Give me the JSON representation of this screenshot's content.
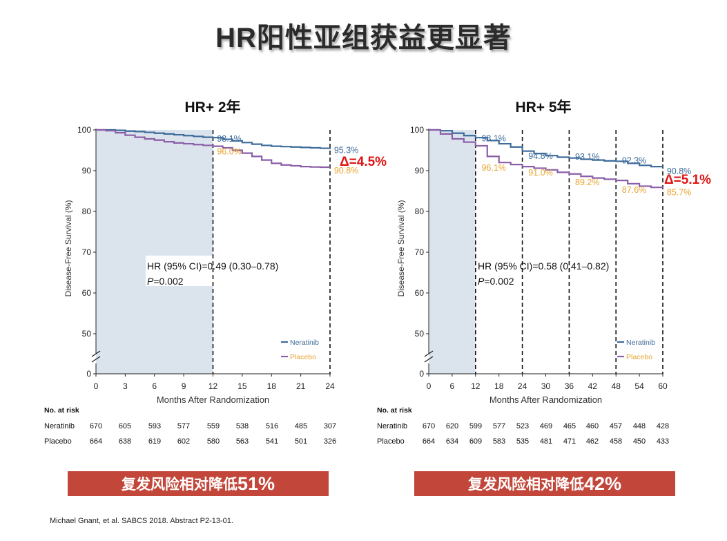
{
  "page": {
    "title": "HR阳性亚组获益更显著"
  },
  "colors": {
    "neratinib": "#3d6b9a",
    "placebo": "#8b5ea8",
    "annotation_placebo": "#e8a32e",
    "delta": "#e01515",
    "shade": "#dbe4ec",
    "banner": "#c2473a"
  },
  "footer": {
    "citation": "Michael Gnant, et al. SABCS 2018. Abstract P2-13-01."
  },
  "chart_data": [
    {
      "type": "line",
      "title": "HR+ 2年",
      "xlabel": "Months After Randomization",
      "ylabel": "Disease-Free Survival (%)",
      "xticks": [
        0,
        3,
        6,
        9,
        12,
        15,
        18,
        21,
        24
      ],
      "yticks": [
        0,
        50,
        60,
        70,
        80,
        90,
        100
      ],
      "xlim": [
        0,
        24
      ],
      "ylim": [
        40,
        100
      ],
      "axis_break": true,
      "shaded_region": [
        0,
        12
      ],
      "dashed_lines": [
        12,
        24
      ],
      "legend": {
        "position": "bottom-right",
        "entries": [
          "Neratinib",
          "Placebo"
        ]
      },
      "series": [
        {
          "name": "Neratinib",
          "x": [
            0,
            1,
            2,
            3,
            4,
            5,
            6,
            7,
            8,
            9,
            10,
            11,
            12,
            13,
            14,
            15,
            16,
            17,
            18,
            19,
            20,
            21,
            22,
            23,
            24
          ],
          "y": [
            100,
            100,
            99.9,
            99.7,
            99.6,
            99.4,
            99.2,
            99.0,
            98.8,
            98.6,
            98.4,
            98.2,
            98.1,
            97.7,
            97.3,
            96.9,
            96.5,
            96.2,
            96.0,
            95.9,
            95.8,
            95.7,
            95.6,
            95.5,
            95.3
          ]
        },
        {
          "name": "Placebo",
          "x": [
            0,
            1,
            2,
            3,
            4,
            5,
            6,
            7,
            8,
            9,
            10,
            11,
            12,
            13,
            14,
            15,
            16,
            17,
            18,
            19,
            20,
            21,
            22,
            23,
            24
          ],
          "y": [
            100,
            99.8,
            99.3,
            98.7,
            98.2,
            97.8,
            97.5,
            97.1,
            96.8,
            96.6,
            96.4,
            96.2,
            96.0,
            95.6,
            95.0,
            94.3,
            93.5,
            92.6,
            91.8,
            91.4,
            91.2,
            91.0,
            90.9,
            90.85,
            90.8
          ]
        }
      ],
      "annotations": [
        {
          "text": "98.1%",
          "x": 12.2,
          "y": 98.1,
          "series": "Neratinib"
        },
        {
          "text": "96.0%",
          "x": 12.2,
          "y": 95.0,
          "series": "Placebo"
        },
        {
          "text": "95.3%",
          "x": 24.2,
          "y": 95.3,
          "series": "Neratinib"
        },
        {
          "text": "90.8%",
          "x": 24.2,
          "y": 90.3,
          "series": "Placebo"
        }
      ],
      "delta_label": "Δ=4.5%",
      "hr_text": "HR (95% CI)=0.49 (0.30–0.78)",
      "p_label": "P",
      "p_value": "=0.002",
      "risk_table": {
        "title": "No. at risk",
        "rows": [
          {
            "label": "Neratinib",
            "values": [
              670,
              605,
              593,
              577,
              559,
              538,
              516,
              485,
              307
            ]
          },
          {
            "label": "Placebo",
            "values": [
              664,
              638,
              619,
              602,
              580,
              563,
              541,
              501,
              326
            ]
          }
        ]
      },
      "banner": {
        "text": "复发风险相对降低",
        "value": "51%"
      }
    },
    {
      "type": "line",
      "title": "HR+ 5年",
      "xlabel": "Months After Randomization",
      "ylabel": "Disease-Free Survival (%)",
      "xticks": [
        0,
        6,
        12,
        18,
        24,
        30,
        36,
        42,
        48,
        54,
        60
      ],
      "yticks": [
        0,
        50,
        60,
        70,
        80,
        90,
        100
      ],
      "xlim": [
        0,
        60
      ],
      "ylim": [
        40,
        100
      ],
      "axis_break": true,
      "shaded_region": [
        0,
        12
      ],
      "dashed_lines": [
        12,
        24,
        36,
        48,
        60
      ],
      "legend": {
        "position": "bottom-right",
        "entries": [
          "Neratinib",
          "Placebo"
        ]
      },
      "series": [
        {
          "name": "Neratinib",
          "x": [
            0,
            3,
            6,
            9,
            12,
            15,
            18,
            21,
            24,
            27,
            30,
            33,
            36,
            39,
            42,
            45,
            48,
            51,
            54,
            57,
            60
          ],
          "y": [
            100,
            99.8,
            99.2,
            98.6,
            98.1,
            97.4,
            96.6,
            95.8,
            94.8,
            94.2,
            93.7,
            93.3,
            93.1,
            92.8,
            92.6,
            92.4,
            92.3,
            91.8,
            91.3,
            91.0,
            90.8
          ]
        },
        {
          "name": "Placebo",
          "x": [
            0,
            3,
            6,
            9,
            12,
            15,
            18,
            21,
            24,
            27,
            30,
            33,
            36,
            39,
            42,
            45,
            48,
            51,
            54,
            57,
            60
          ],
          "y": [
            100,
            99.0,
            97.8,
            97.0,
            96.1,
            93.5,
            92.0,
            91.5,
            91.0,
            90.6,
            90.2,
            89.6,
            89.2,
            88.6,
            88.2,
            87.9,
            87.6,
            86.8,
            86.2,
            85.9,
            85.7
          ]
        }
      ],
      "annotations": [
        {
          "text": "98.1%",
          "x": 13,
          "y": 98.2,
          "series": "Neratinib"
        },
        {
          "text": "96.1%",
          "x": 13,
          "y": 91.0,
          "series": "Placebo"
        },
        {
          "text": "94.8%",
          "x": 25,
          "y": 93.9,
          "series": "Neratinib"
        },
        {
          "text": "91.0%",
          "x": 25,
          "y": 89.8,
          "series": "Placebo"
        },
        {
          "text": "93.1%",
          "x": 37,
          "y": 93.7,
          "series": "Neratinib"
        },
        {
          "text": "89.2%",
          "x": 37,
          "y": 87.5,
          "series": "Placebo"
        },
        {
          "text": "92.3%",
          "x": 49,
          "y": 92.8,
          "series": "Neratinib"
        },
        {
          "text": "87.6%",
          "x": 49,
          "y": 85.6,
          "series": "Placebo"
        },
        {
          "text": "90.8%",
          "x": 60.5,
          "y": 90.2,
          "series": "Neratinib"
        },
        {
          "text": "85.7%",
          "x": 60.5,
          "y": 85.0,
          "series": "Placebo"
        }
      ],
      "delta_label": "Δ=5.1%",
      "hr_text": "HR (95% CI)=0.58 (0.41–0.82)",
      "p_label": "P",
      "p_value": "=0.002",
      "risk_table": {
        "title": "No. at risk",
        "rows": [
          {
            "label": "Neratinib",
            "values": [
              670,
              620,
              599,
              577,
              523,
              469,
              465,
              460,
              457,
              448,
              428
            ]
          },
          {
            "label": "Placebo",
            "values": [
              664,
              634,
              609,
              583,
              535,
              481,
              471,
              462,
              458,
              450,
              433
            ]
          }
        ]
      },
      "banner": {
        "text": "复发风险相对降低",
        "value": "42%"
      }
    }
  ]
}
